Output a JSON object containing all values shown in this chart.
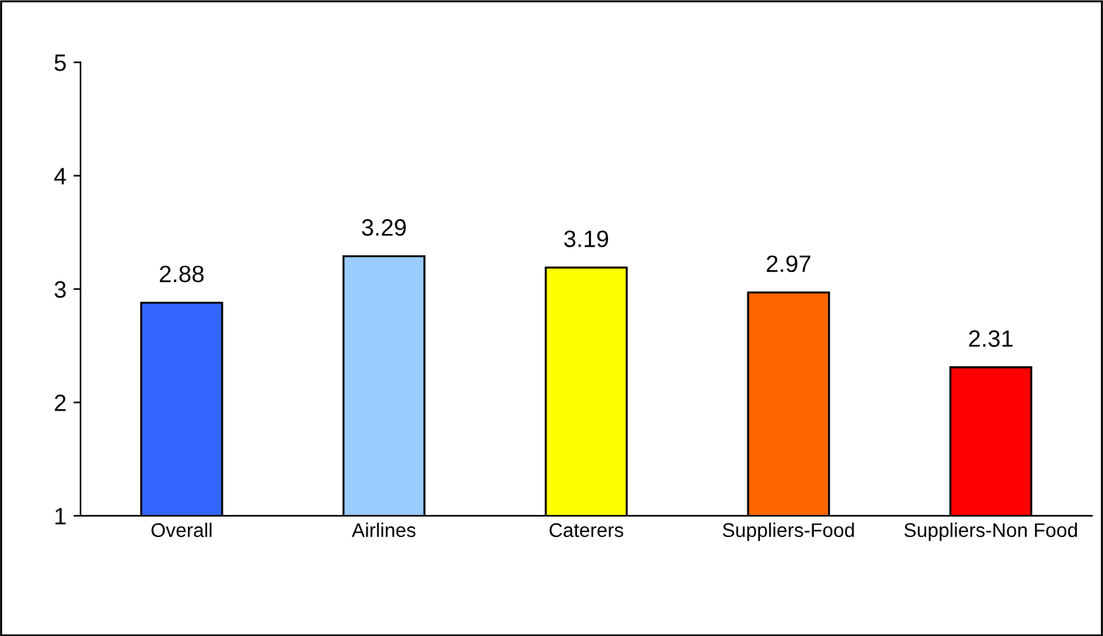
{
  "chart_data": {
    "type": "bar",
    "categories": [
      "Overall",
      "Airlines",
      "Caterers",
      "Suppliers-Food",
      "Suppliers-Non Food"
    ],
    "values": [
      2.88,
      3.29,
      3.19,
      2.97,
      2.31
    ],
    "colors": [
      "#3366ff",
      "#99ccff",
      "#ffff00",
      "#ff6600",
      "#ff0000"
    ],
    "ylim": [
      1,
      5
    ],
    "yticks": [
      1,
      2,
      3,
      4,
      5
    ],
    "grid": false,
    "data_labels": true,
    "legend": false
  }
}
